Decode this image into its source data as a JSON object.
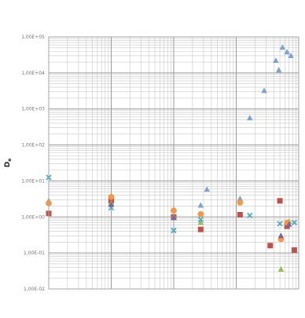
{
  "chart_data": {
    "type": "scatter",
    "title": "",
    "xlabel": "",
    "ylabel": "D",
    "ylabel_subscript": "e",
    "y_scale": "log",
    "x_scale": "log",
    "ylim": [
      0.01,
      100000
    ],
    "xlim": [
      1,
      10000
    ],
    "grid": "on",
    "legend": "none",
    "y_tick_labels": [
      "1,00E-02",
      "1,00E-01",
      "1,00E+00",
      "1,00E+01",
      "1,00E+02",
      "1,00E+03",
      "1,00E+04",
      "1,00E+05"
    ],
    "series": [
      {
        "marker": "triangle",
        "color": "#7ea3cf",
        "points": [
          {
            "x": 1,
            "y": 2.8
          },
          {
            "x": 10,
            "y": 3.3
          },
          {
            "x": 100,
            "y": 1.6
          },
          {
            "x": 270,
            "y": 2.1
          },
          {
            "x": 340,
            "y": 5.8
          },
          {
            "x": 1150,
            "y": 3.2
          },
          {
            "x": 1650,
            "y": 560
          },
          {
            "x": 2800,
            "y": 3200
          },
          {
            "x": 4300,
            "y": 22000
          },
          {
            "x": 4800,
            "y": 12000
          },
          {
            "x": 5500,
            "y": 51000
          },
          {
            "x": 6500,
            "y": 38000
          },
          {
            "x": 7500,
            "y": 30000
          }
        ]
      },
      {
        "marker": "square",
        "color": "#c0504d",
        "points": [
          {
            "x": 1,
            "y": 1.25
          },
          {
            "x": 10,
            "y": 2.8
          },
          {
            "x": 100,
            "y": 1.0
          },
          {
            "x": 270,
            "y": 0.45
          },
          {
            "x": 1150,
            "y": 1.15
          },
          {
            "x": 3500,
            "y": 0.16
          },
          {
            "x": 5000,
            "y": 2.8
          },
          {
            "x": 6500,
            "y": 0.55
          },
          {
            "x": 8500,
            "y": 0.12
          }
        ]
      },
      {
        "marker": "triangle",
        "color": "#9bbb59",
        "points": [
          {
            "x": 1,
            "y": 2.6
          },
          {
            "x": 10,
            "y": 2.4
          },
          {
            "x": 100,
            "y": 1.0
          },
          {
            "x": 270,
            "y": 0.7
          },
          {
            "x": 5200,
            "y": 0.035
          },
          {
            "x": 7000,
            "y": 0.75
          }
        ]
      },
      {
        "marker": "x",
        "color": "#4bacc6",
        "points": [
          {
            "x": 1,
            "y": 12.5
          },
          {
            "x": 10,
            "y": 1.8
          },
          {
            "x": 100,
            "y": 0.42
          },
          {
            "x": 270,
            "y": 0.85
          },
          {
            "x": 1650,
            "y": 1.1
          },
          {
            "x": 5000,
            "y": 0.65
          },
          {
            "x": 8500,
            "y": 0.7
          }
        ]
      },
      {
        "marker": "circle",
        "color": "#f79646",
        "points": [
          {
            "x": 1,
            "y": 2.4
          },
          {
            "x": 10,
            "y": 3.6
          },
          {
            "x": 100,
            "y": 1.5
          },
          {
            "x": 270,
            "y": 1.2
          },
          {
            "x": 1150,
            "y": 2.5
          },
          {
            "x": 5200,
            "y": 0.24
          },
          {
            "x": 6500,
            "y": 0.7
          }
        ]
      },
      {
        "marker": "triangle",
        "color": "#8064a2",
        "points": [
          {
            "x": 10,
            "y": 2.2
          },
          {
            "x": 100,
            "y": 0.95
          },
          {
            "x": 5200,
            "y": 0.3
          },
          {
            "x": 7000,
            "y": 0.62
          }
        ]
      }
    ]
  }
}
